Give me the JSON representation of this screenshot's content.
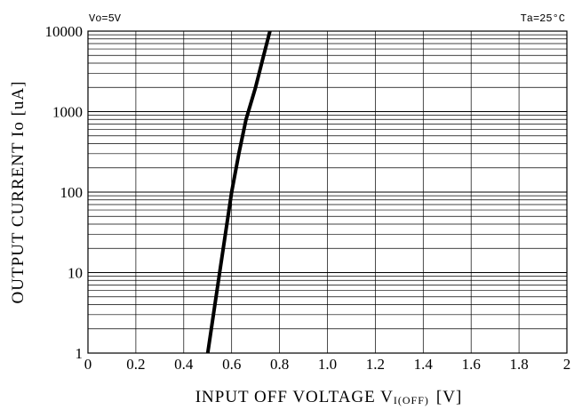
{
  "chart_data": {
    "type": "line",
    "x_scale": "linear",
    "y_scale": "log",
    "xlim": [
      0,
      2
    ],
    "ylim": [
      1,
      10000
    ],
    "x_ticks": [
      "0",
      "0.2",
      "0.4",
      "0.6",
      "0.8",
      "1.0",
      "1.2",
      "1.4",
      "1.6",
      "1.8",
      "2"
    ],
    "y_ticks": [
      "1",
      "10",
      "100",
      "1000",
      "10000"
    ],
    "xlabel_main": "INPUT OFF VOLTAGE V",
    "xlabel_sub": "I(OFF)",
    "xlabel_unit": "[V]",
    "ylabel": "OUTPUT CURRENT Io [uA]",
    "condition_left": "Vo=5V",
    "condition_right": "Ta=25°C",
    "grid": true,
    "series": [
      {
        "x": [
          0.5,
          0.55,
          0.6,
          0.63,
          0.66,
          0.7,
          0.73,
          0.76
        ],
        "y": [
          1,
          10,
          100,
          300,
          800,
          2000,
          4500,
          10000
        ]
      }
    ],
    "colors": {
      "line": "#000000",
      "grid": "#000000",
      "background": "#ffffff"
    }
  }
}
